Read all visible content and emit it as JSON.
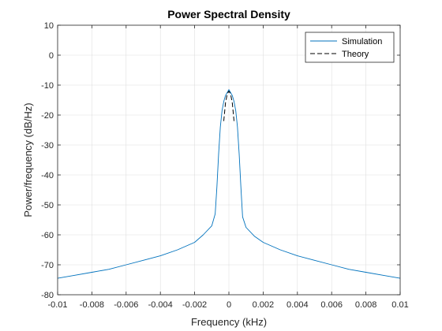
{
  "chart_data": {
    "type": "line",
    "title": "Power Spectral Density",
    "xlabel": "Frequency (kHz)",
    "ylabel": "Power/frequency (dB/Hz)",
    "xlim": [
      -0.01,
      0.01
    ],
    "ylim": [
      -80,
      10
    ],
    "xticks": [
      -0.01,
      -0.008,
      -0.006,
      -0.004,
      -0.002,
      0,
      0.002,
      0.004,
      0.006,
      0.008,
      0.01
    ],
    "xtick_labels": [
      "-0.01",
      "-0.008",
      "-0.006",
      "-0.004",
      "-0.002",
      "0",
      "0.002",
      "0.004",
      "0.006",
      "0.008",
      "0.01"
    ],
    "yticks": [
      -80,
      -70,
      -60,
      -50,
      -40,
      -30,
      -20,
      -10,
      0,
      10
    ],
    "ytick_labels": [
      "-80",
      "-70",
      "-60",
      "-50",
      "-40",
      "-30",
      "-20",
      "-10",
      "0",
      "10"
    ],
    "grid": true,
    "legend_position": "top-right",
    "series": [
      {
        "name": "Simulation",
        "color": "#0072bd",
        "style": "solid",
        "x": [
          -0.01,
          -0.009,
          -0.008,
          -0.007,
          -0.006,
          -0.005,
          -0.004,
          -0.003,
          -0.002,
          -0.0015,
          -0.001,
          -0.0008,
          -0.0007,
          -0.0006,
          -0.0005,
          -0.0004,
          -0.0003,
          -0.0002,
          -0.0001,
          0,
          0.0001,
          0.0002,
          0.0003,
          0.0004,
          0.0005,
          0.0006,
          0.0007,
          0.0008,
          0.001,
          0.0015,
          0.002,
          0.003,
          0.004,
          0.005,
          0.006,
          0.007,
          0.008,
          0.009,
          0.01
        ],
        "y": [
          -74.5,
          -73.5,
          -72.5,
          -71.5,
          -70.0,
          -68.5,
          -67.0,
          -65.0,
          -62.5,
          -60.0,
          -57.0,
          -53.0,
          -44.0,
          -33.0,
          -24.0,
          -18.5,
          -15.5,
          -13.5,
          -12.5,
          -11.5,
          -12.5,
          -13.5,
          -15.5,
          -18.5,
          -24.0,
          -33.0,
          -44.0,
          -54.0,
          -57.5,
          -60.5,
          -62.5,
          -65.0,
          -67.0,
          -68.5,
          -70.0,
          -71.5,
          -72.5,
          -73.5,
          -74.5
        ]
      },
      {
        "name": "Theory",
        "color": "#000000",
        "style": "dashed",
        "x": [
          -0.0003,
          -0.0002,
          -0.0001,
          0,
          0.0001,
          0.0002,
          0.0003
        ],
        "y": [
          -22.0,
          -16.0,
          -13.0,
          -12.0,
          -13.0,
          -16.0,
          -22.0
        ]
      }
    ]
  }
}
